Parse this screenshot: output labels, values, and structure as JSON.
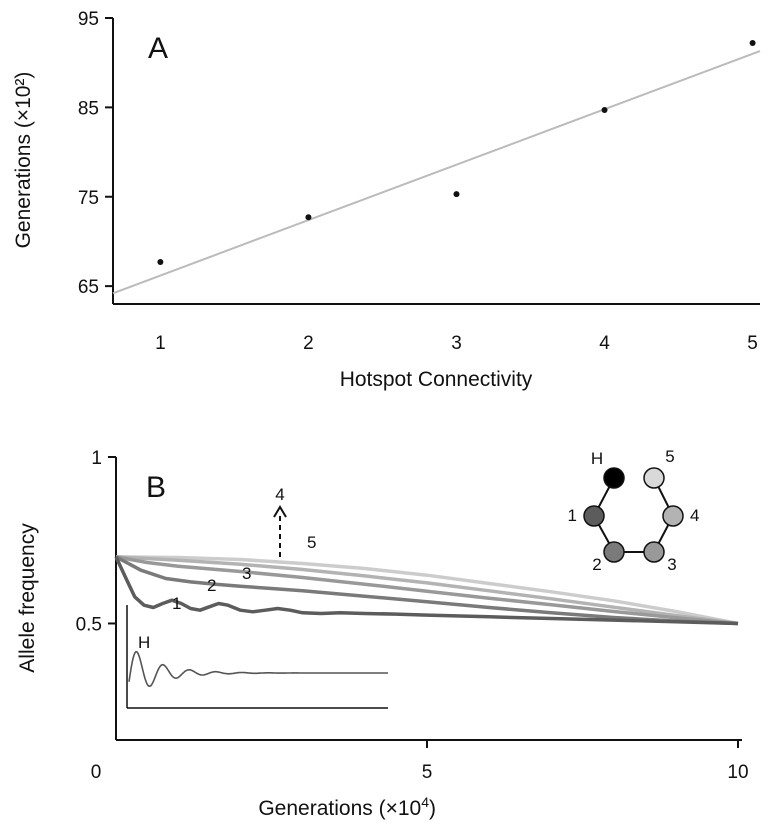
{
  "chart_data": [
    {
      "type": "scatter",
      "panel_label": "A",
      "xlabel": "Hotspot Connectivity",
      "ylabel": "Generations (×10²)",
      "x": [
        1,
        2,
        3,
        4,
        5
      ],
      "y": [
        67.7,
        72.7,
        75.3,
        84.7,
        92.2
      ],
      "xticks": [
        "1",
        "2",
        "3",
        "4",
        "5"
      ],
      "yticks": [
        "65",
        "75",
        "85",
        "95"
      ],
      "xlim": [
        0.68,
        5.05
      ],
      "ylim": [
        63,
        95
      ],
      "trendline": {
        "x": [
          0.68,
          5.05
        ],
        "y": [
          64.2,
          91.3
        ],
        "color": "#bbbbbb"
      },
      "grid": false
    },
    {
      "type": "line",
      "panel_label": "B",
      "xlabel": "Generations (×10",
      "xlabel_exp": "4",
      "xlabel_close": ")",
      "ylabel": "Allele frequency",
      "xticks": [
        "0",
        "5",
        "10"
      ],
      "yticks": [
        "1",
        "0.5"
      ],
      "xlim": [
        0,
        10
      ],
      "ylim": [
        0.15,
        1
      ],
      "grid": false,
      "series": [
        {
          "name": "1",
          "color": "#5c5c5c",
          "x": [
            0,
            0.15,
            0.3,
            0.45,
            0.6,
            0.75,
            0.9,
            1.05,
            1.2,
            1.35,
            1.5,
            1.65,
            1.8,
            2.0,
            2.2,
            2.4,
            2.6,
            2.8,
            3.0,
            3.3,
            3.6,
            4.0,
            4.5,
            5.0,
            6.0,
            7.0,
            8.0,
            9.0,
            10.0
          ],
          "y": [
            0.7,
            0.64,
            0.58,
            0.555,
            0.548,
            0.56,
            0.57,
            0.56,
            0.545,
            0.54,
            0.55,
            0.56,
            0.555,
            0.54,
            0.535,
            0.54,
            0.545,
            0.54,
            0.532,
            0.53,
            0.532,
            0.53,
            0.528,
            0.525,
            0.52,
            0.515,
            0.51,
            0.505,
            0.5
          ]
        },
        {
          "name": "2",
          "color": "#7a7a7a",
          "x": [
            0,
            0.4,
            0.8,
            1.2,
            1.6,
            2.0,
            2.5,
            3.0,
            3.5,
            4.0,
            5.0,
            6.0,
            7.0,
            8.0,
            9.0,
            10.0
          ],
          "y": [
            0.7,
            0.66,
            0.635,
            0.625,
            0.618,
            0.612,
            0.605,
            0.598,
            0.59,
            0.582,
            0.565,
            0.548,
            0.532,
            0.518,
            0.507,
            0.5
          ]
        },
        {
          "name": "3",
          "color": "#999999",
          "x": [
            0,
            0.5,
            1.0,
            1.5,
            2.0,
            3.0,
            4.0,
            5.0,
            6.0,
            7.0,
            8.0,
            9.0,
            10.0
          ],
          "y": [
            0.7,
            0.683,
            0.672,
            0.664,
            0.656,
            0.638,
            0.618,
            0.597,
            0.576,
            0.556,
            0.536,
            0.517,
            0.5
          ]
        },
        {
          "name": "4",
          "color": "#b3b3b3",
          "x": [
            0,
            0.5,
            1.0,
            2.0,
            3.0,
            4.0,
            5.0,
            6.0,
            7.0,
            8.0,
            9.0,
            10.0
          ],
          "y": [
            0.7,
            0.695,
            0.69,
            0.678,
            0.662,
            0.643,
            0.622,
            0.598,
            0.574,
            0.549,
            0.524,
            0.5
          ]
        },
        {
          "name": "5",
          "color": "#cccccc",
          "x": [
            0,
            1.0,
            2.0,
            3.0,
            4.0,
            5.0,
            6.0,
            7.0,
            8.0,
            9.0,
            10.0
          ],
          "y": [
            0.7,
            0.698,
            0.692,
            0.68,
            0.665,
            0.645,
            0.62,
            0.595,
            0.568,
            0.536,
            0.5
          ]
        }
      ],
      "arrow_label": "4",
      "inset": {
        "label": "H",
        "color": "#555555"
      },
      "network": {
        "nodes": [
          {
            "label": "H",
            "color": "#000000"
          },
          {
            "label": "1",
            "color": "#5c5c5c"
          },
          {
            "label": "2",
            "color": "#7a7a7a"
          },
          {
            "label": "3",
            "color": "#999999"
          },
          {
            "label": "4",
            "color": "#b3b3b3"
          },
          {
            "label": "5",
            "color": "#d9d9d9"
          }
        ]
      }
    }
  ]
}
